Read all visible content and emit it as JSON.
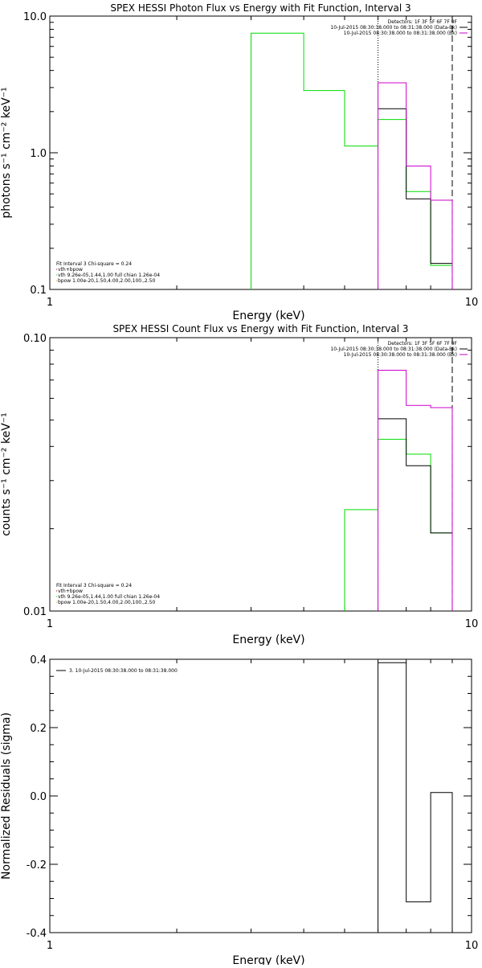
{
  "colors": {
    "observed": "#000000",
    "bkg_sub": "#cc00cc",
    "vth": "#00dd00",
    "bpow": "#ddaa00",
    "total": "#cc0000",
    "axis": "#000000"
  },
  "chart_data": [
    {
      "type": "line",
      "title": "SPEX HESSI Photon Flux vs Energy with Fit Function, Interval 3",
      "xlabel": "Energy (keV)",
      "ylabel": "photons s⁻¹ cm⁻² keV⁻¹",
      "xscale": "log",
      "yscale": "log",
      "xlim": [
        1,
        10
      ],
      "ylim": [
        0.1,
        10
      ],
      "xticks": [
        1,
        10
      ],
      "xtick_labels": [
        "1",
        "10"
      ],
      "yticks": [
        0.1,
        1,
        10
      ],
      "ytick_labels": [
        "0.1",
        "1.0",
        "10.0"
      ],
      "vlines": [
        {
          "x": 6,
          "style": "dotted"
        },
        {
          "x": 9,
          "style": "dashed"
        }
      ],
      "legend_right": [
        {
          "text": "Detectors: 1F 3F 5F 6F 7F 9F",
          "color": ""
        },
        {
          "text": "10-Jul-2015 08:30:38.000 to 08:31:38.000 (Data-Bk)",
          "color": "#000000"
        },
        {
          "text": "10-Jul-2015 08:30:38.000 to 08:31:38.000 (Bk)",
          "color": "#cc00cc"
        }
      ],
      "legend_left": [
        {
          "text": "Fit Interval 3   Chi-square = 0.24",
          "color": ""
        },
        {
          "text": "vth+bpow",
          "color": "#cc0000"
        },
        {
          "text": "vth 9.26e-05,1.44,1.00  full chian 1.26e-04",
          "color": "#00dd00"
        },
        {
          "text": "bpow 1.00e-20,1.50,4.00,2.00,100.,2.50",
          "color": "#ddaa00"
        }
      ],
      "series": [
        {
          "color": "#00dd00",
          "bins": [
            [
              3.0,
              4.0,
              7.5
            ],
            [
              4.0,
              5.0,
              2.85
            ],
            [
              5.0,
              6.0,
              1.12
            ],
            [
              6.0,
              7.0,
              1.75
            ],
            [
              7.0,
              8.0,
              0.52
            ],
            [
              8.0,
              9.0,
              0.15
            ]
          ],
          "drop_start": true
        },
        {
          "color": "#000000",
          "bins": [
            [
              6.0,
              7.0,
              2.1
            ],
            [
              7.0,
              8.0,
              0.46
            ],
            [
              8.0,
              9.0,
              0.155
            ]
          ]
        },
        {
          "color": "#cc00cc",
          "bins": [
            [
              6.0,
              7.0,
              3.25
            ],
            [
              7.0,
              8.0,
              0.8
            ],
            [
              8.0,
              9.0,
              0.45
            ]
          ],
          "drop_start": true,
          "drop_end": true
        }
      ]
    },
    {
      "type": "line",
      "title": "SPEX HESSI Count Flux vs Energy with Fit Function, Interval 3",
      "xlabel": "Energy (keV)",
      "ylabel": "counts s⁻¹ cm⁻² keV⁻¹",
      "xscale": "log",
      "yscale": "log",
      "xlim": [
        1,
        10
      ],
      "ylim": [
        0.01,
        0.1
      ],
      "xticks": [
        1,
        10
      ],
      "xtick_labels": [
        "1",
        "10"
      ],
      "yticks": [
        0.01,
        0.1
      ],
      "ytick_labels": [
        "0.01",
        "0.10"
      ],
      "vlines": [
        {
          "x": 6,
          "style": "dotted"
        },
        {
          "x": 9,
          "style": "dashed"
        }
      ],
      "legend_right": [
        {
          "text": "Detectors: 1F 3F 5F 6F 7F 9F",
          "color": ""
        },
        {
          "text": "10-Jul-2015 08:30:38.000 to 08:31:38.000 (Data-Bk)",
          "color": "#000000"
        },
        {
          "text": "10-Jul-2015 08:30:38.000 to 08:31:38.000 (Bk)",
          "color": "#cc00cc"
        }
      ],
      "legend_left": [
        {
          "text": "Fit Interval 3   Chi-square = 0.24",
          "color": ""
        },
        {
          "text": "vth+bpow",
          "color": "#cc0000"
        },
        {
          "text": "vth 9.26e-05,1.44,1.00  full chian 1.26e-04",
          "color": "#00dd00"
        },
        {
          "text": "bpow 1.00e-20,1.50,4.00,2.00,100.,2.50",
          "color": "#ddaa00"
        }
      ],
      "series": [
        {
          "color": "#00dd00",
          "bins": [
            [
              5.0,
              6.0,
              0.0235
            ],
            [
              6.0,
              7.0,
              0.0425
            ],
            [
              7.0,
              8.0,
              0.0375
            ],
            [
              8.0,
              9.0,
              0.0193
            ]
          ],
          "drop_start": true
        },
        {
          "color": "#000000",
          "bins": [
            [
              6.0,
              7.0,
              0.0505
            ],
            [
              7.0,
              8.0,
              0.034
            ],
            [
              8.0,
              9.0,
              0.0193
            ]
          ]
        },
        {
          "color": "#cc00cc",
          "bins": [
            [
              6.0,
              7.0,
              0.076
            ],
            [
              7.0,
              8.0,
              0.0565
            ],
            [
              8.0,
              9.0,
              0.0555
            ]
          ],
          "drop_start": true,
          "drop_end": true
        }
      ]
    },
    {
      "type": "line",
      "title": "",
      "xlabel": "Energy (keV)",
      "ylabel": "Normalized Residuals (sigma)",
      "xscale": "log",
      "yscale": "linear",
      "xlim": [
        1,
        10
      ],
      "ylim": [
        -0.4,
        0.4
      ],
      "xticks": [
        1,
        10
      ],
      "xtick_labels": [
        "1",
        "10"
      ],
      "yticks": [
        -0.4,
        -0.2,
        0.0,
        0.2,
        0.4
      ],
      "ytick_labels": [
        "-0.4",
        "-0.2",
        "0.0",
        "0.2",
        "0.4"
      ],
      "vlines": [],
      "legend_right": [],
      "legend_left": [
        {
          "text": "3. 10-Jul-2015 08:30:38.000 to 08:31:38.000",
          "color": "#000000"
        }
      ],
      "series": [
        {
          "color": "#000000",
          "bins": [
            [
              6.0,
              7.0,
              0.39
            ],
            [
              7.0,
              8.0,
              -0.31
            ],
            [
              8.0,
              9.0,
              0.01
            ]
          ],
          "drop_start": true,
          "drop_end": true,
          "drop_to": -0.4
        }
      ]
    }
  ]
}
